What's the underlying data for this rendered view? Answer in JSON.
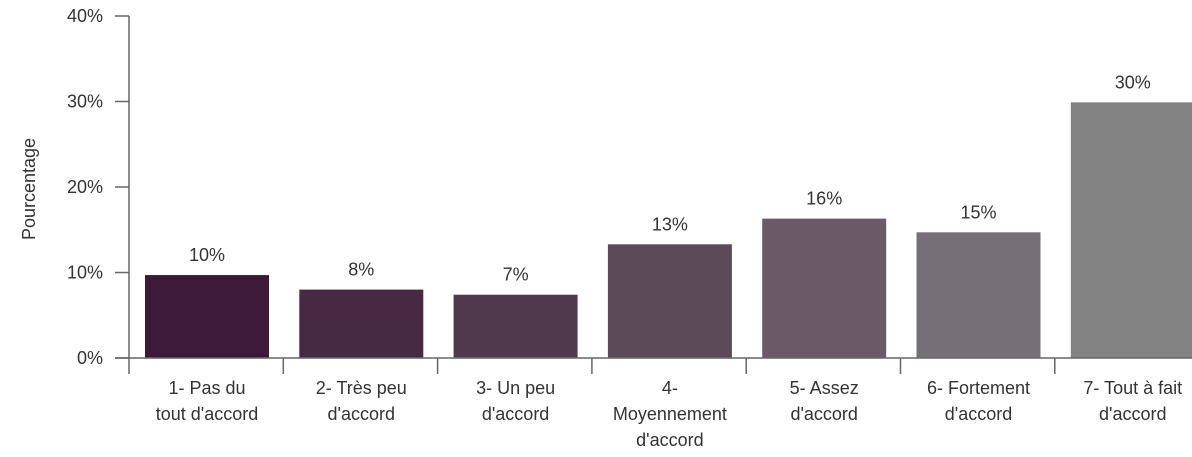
{
  "chart_data": {
    "type": "bar",
    "title": "",
    "xlabel": "",
    "ylabel": "Pourcentage",
    "ylim": [
      0,
      40
    ],
    "yticks": [
      0,
      10,
      20,
      30,
      40
    ],
    "ytick_labels": [
      "0%",
      "10%",
      "20%",
      "30%",
      "40%"
    ],
    "grid": false,
    "categories": [
      [
        "1- Pas du",
        "tout d'accord"
      ],
      [
        "2- Très peu",
        "d'accord"
      ],
      [
        "3- Un peu",
        "d'accord"
      ],
      [
        "4-",
        "Moyennement",
        "d'accord"
      ],
      [
        "5- Assez",
        "d'accord"
      ],
      [
        "6- Fortement",
        "d'accord"
      ],
      [
        "7- Tout à fait",
        "d'accord"
      ]
    ],
    "values": [
      9.7,
      8.0,
      7.4,
      13.3,
      16.3,
      14.7,
      29.9
    ],
    "value_labels": [
      "10%",
      "8%",
      "7%",
      "13%",
      "16%",
      "15%",
      "30%"
    ],
    "colors": [
      "#3d1a37",
      "#462a42",
      "#4e3a4c",
      "#5c4a59",
      "#6a5a67",
      "#757077",
      "#828282"
    ]
  }
}
